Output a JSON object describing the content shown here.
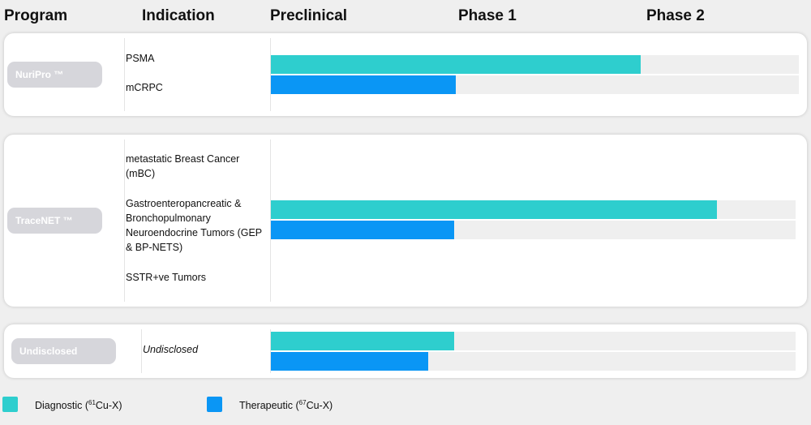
{
  "header": {
    "program": "Program",
    "indication": "Indication",
    "preclinical": "Preclinical",
    "phase1": "Phase 1",
    "phase2": "Phase 2"
  },
  "colors": {
    "diagnostic": "#2ecece",
    "therapeutic": "#0a96f5",
    "track": "#efefef"
  },
  "programs": [
    {
      "name": "NuriPro ™",
      "indications": [
        "PSMA",
        "mCRPC"
      ]
    },
    {
      "name": "TraceNET ™",
      "indications": [
        "metastatic Breast Cancer (mBC)",
        "Gastroenteropancreatic & Bronchopulmonary Neuroendocrine Tumors (GEP & BP-NETS)",
        "SSTR+ve Tumors"
      ]
    },
    {
      "name": "Undisclosed",
      "indications": [
        "Undisclosed"
      ]
    }
  ],
  "legend": {
    "diagnostic": {
      "label": "Diagnostic (",
      "isotope_sup": "61",
      "isotope": "Cu-X)"
    },
    "therapeutic": {
      "label": "Therapeutic (",
      "isotope_sup": "67",
      "isotope": "Cu-X)"
    }
  },
  "chart_data": {
    "type": "bar",
    "orientation": "horizontal",
    "stages": [
      "Preclinical",
      "Phase 1",
      "Phase 2"
    ],
    "series": [
      {
        "name": "Diagnostic (61Cu-X)",
        "color": "#2ecece",
        "values": [
          {
            "program": "NuriPro ™",
            "progress": 0.7
          },
          {
            "program": "TraceNET ™",
            "progress": 0.85
          },
          {
            "program": "Undisclosed",
            "progress": 0.35
          }
        ]
      },
      {
        "name": "Therapeutic (67Cu-X)",
        "color": "#0a96f5",
        "values": [
          {
            "program": "NuriPro ™",
            "progress": 0.35
          },
          {
            "program": "TraceNET ™",
            "progress": 0.35
          },
          {
            "program": "Undisclosed",
            "progress": 0.3
          }
        ]
      }
    ]
  }
}
